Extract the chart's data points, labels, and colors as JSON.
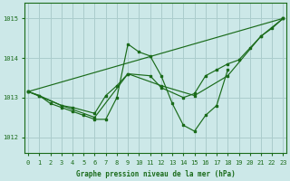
{
  "background_color": "#cce8e8",
  "grid_color": "#aacccc",
  "line_color": "#1a6b1a",
  "xlabel": "Graphe pression niveau de la mer (hPa)",
  "ylim": [
    1011.6,
    1015.4
  ],
  "xlim": [
    -0.3,
    23.3
  ],
  "yticks": [
    1012,
    1013,
    1014,
    1015
  ],
  "xticks": [
    0,
    1,
    2,
    3,
    4,
    5,
    6,
    7,
    8,
    9,
    10,
    11,
    12,
    13,
    14,
    15,
    16,
    17,
    18,
    19,
    20,
    21,
    22,
    23
  ],
  "series": [
    {
      "x": [
        0,
        1,
        2,
        3,
        4,
        5,
        6,
        7,
        8,
        9,
        10,
        11,
        12,
        13,
        14,
        15,
        16,
        17,
        18
      ],
      "y": [
        1013.15,
        1013.05,
        1012.85,
        1012.75,
        1012.65,
        1012.55,
        1012.45,
        1012.45,
        1013.0,
        1014.35,
        1014.15,
        1014.05,
        1013.55,
        1012.85,
        1012.3,
        1012.15,
        1012.55,
        1012.8,
        1013.7
      ]
    },
    {
      "x": [
        0,
        1,
        3,
        4,
        6,
        7,
        8,
        9,
        11,
        12,
        14,
        15,
        16,
        17,
        18,
        19,
        20,
        21,
        22,
        23
      ],
      "y": [
        1013.15,
        1013.05,
        1012.8,
        1012.75,
        1012.6,
        1013.05,
        1013.3,
        1013.6,
        1013.55,
        1013.25,
        1013.0,
        1013.1,
        1013.55,
        1013.7,
        1013.85,
        1013.95,
        1014.25,
        1014.55,
        1014.75,
        1015.0
      ]
    },
    {
      "x": [
        0,
        3,
        6,
        9,
        12,
        15,
        18,
        21,
        23
      ],
      "y": [
        1013.15,
        1012.8,
        1012.5,
        1013.6,
        1013.3,
        1013.05,
        1013.55,
        1014.55,
        1015.0
      ]
    },
    {
      "x": [
        0,
        23
      ],
      "y": [
        1013.15,
        1015.0
      ]
    }
  ]
}
